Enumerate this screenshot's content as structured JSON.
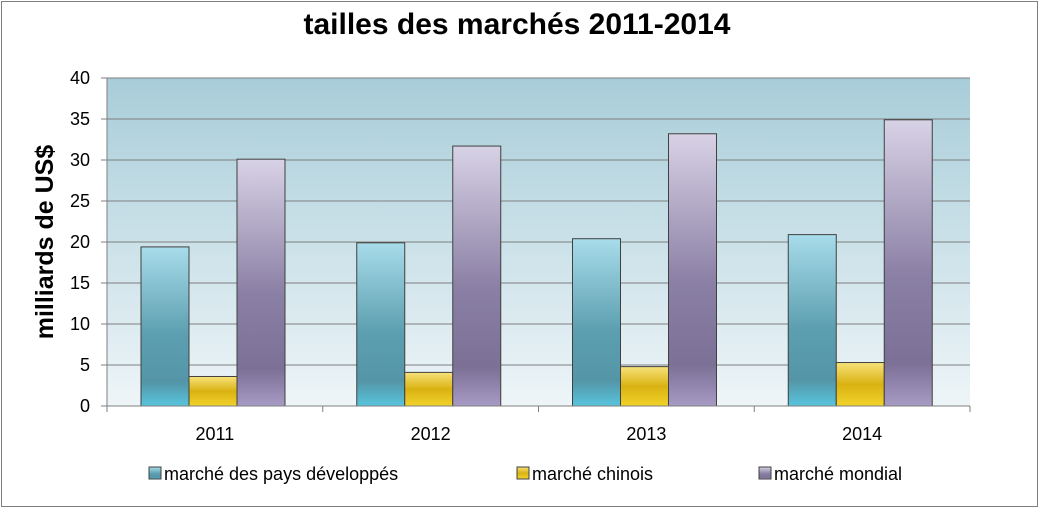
{
  "chart_data": {
    "type": "bar",
    "title": "tailles des marchés 2011-2014",
    "xlabel": "",
    "ylabel": "milliards de US$",
    "categories": [
      "2011",
      "2012",
      "2013",
      "2014"
    ],
    "ylim": [
      0,
      40
    ],
    "yticks": [
      0,
      5,
      10,
      15,
      20,
      25,
      30,
      35,
      40
    ],
    "grid": true,
    "legend_position": "bottom",
    "series": [
      {
        "name": "marché des pays développés",
        "values": [
          19.4,
          19.9,
          20.4,
          20.9
        ],
        "color": "#4bacc6"
      },
      {
        "name": "marché chinois",
        "values": [
          3.6,
          4.1,
          4.8,
          5.3
        ],
        "color": "#e6c619"
      },
      {
        "name": "marché mondial",
        "values": [
          30.1,
          31.7,
          33.2,
          34.9
        ],
        "color": "#8e82a8"
      }
    ]
  }
}
